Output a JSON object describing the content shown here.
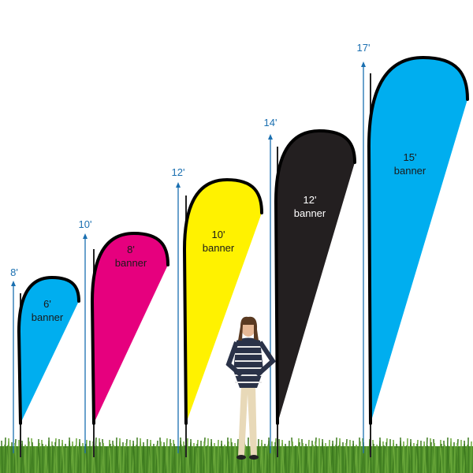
{
  "banners": [
    {
      "label_size": "6'",
      "label_word": "banner",
      "height_label": "8'",
      "color": "#00aeef",
      "text_color": "#1a1a1a"
    },
    {
      "label_size": "8'",
      "label_word": "banner",
      "height_label": "10'",
      "color": "#e6007e",
      "text_color": "#1a1a1a"
    },
    {
      "label_size": "10'",
      "label_word": "banner",
      "height_label": "12'",
      "color": "#fff200",
      "text_color": "#1a1a1a"
    },
    {
      "label_size": "12'",
      "label_word": "banner",
      "height_label": "14'",
      "color": "#231f20",
      "text_color": "#ffffff"
    },
    {
      "label_size": "15'",
      "label_word": "banner",
      "height_label": "17'",
      "color": "#00aeef",
      "text_color": "#1a1a1a"
    }
  ],
  "colors": {
    "arrow": "#1a6fb0",
    "grass": "#4f8f2a",
    "outline": "#000000"
  }
}
